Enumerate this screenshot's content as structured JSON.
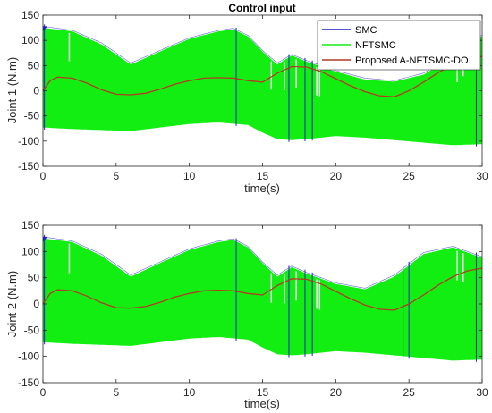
{
  "chart_data": [
    {
      "type": "line",
      "title": "Control input",
      "xlabel": "time(s)",
      "ylabel": "Joint 1 (N.m)",
      "xlim": [
        0,
        30
      ],
      "ylim": [
        -150,
        150
      ],
      "xticks": [
        0,
        5,
        10,
        15,
        20,
        25,
        30
      ],
      "yticks": [
        -150,
        -100,
        -50,
        0,
        50,
        100,
        150
      ],
      "legend": {
        "position": "top-right",
        "entries": [
          "SMC",
          "NFTSMC",
          "Proposed A-NFTSMC-DO"
        ]
      },
      "series": [
        {
          "name": "SMC",
          "color": "#1f22c8",
          "style": "chattering band with occasional spikes",
          "upper_envelope": {
            "x": [
              0,
              2,
              4,
              6,
              8,
              10,
              12,
              13,
              14,
              15,
              16,
              17,
              18,
              20,
              22,
              24,
              26,
              28,
              29,
              30
            ],
            "y": [
              128,
              120,
              95,
              55,
              80,
              105,
              120,
              124,
              110,
              80,
              55,
              72,
              60,
              40,
              25,
              20,
              35,
              70,
              100,
              110
            ]
          },
          "lower_envelope": {
            "x": [
              0,
              2,
              4,
              6,
              8,
              10,
              12,
              14,
              15,
              16,
              17,
              18,
              20,
              22,
              24,
              26,
              28,
              30
            ],
            "y": [
              -75,
              -78,
              -80,
              -82,
              -75,
              -68,
              -65,
              -70,
              -85,
              -98,
              -100,
              -98,
              -92,
              -95,
              -100,
              -105,
              -110,
              -108
            ]
          }
        },
        {
          "name": "NFTSMC",
          "color": "#12ee12",
          "style": "dense chattering band",
          "upper_envelope": {
            "x": [
              0,
              2,
              4,
              6,
              8,
              10,
              12,
              13,
              14,
              15,
              16,
              17,
              18,
              20,
              22,
              24,
              26,
              28,
              29,
              30
            ],
            "y": [
              125,
              118,
              92,
              52,
              78,
              103,
              118,
              122,
              108,
              78,
              52,
              70,
              58,
              38,
              22,
              18,
              32,
              68,
              98,
              108
            ]
          },
          "lower_envelope": {
            "x": [
              0,
              2,
              4,
              6,
              8,
              10,
              12,
              14,
              15,
              16,
              17,
              18,
              20,
              22,
              24,
              26,
              28,
              30
            ],
            "y": [
              -73,
              -76,
              -78,
              -80,
              -73,
              -66,
              -63,
              -68,
              -83,
              -96,
              -98,
              -96,
              -90,
              -93,
              -98,
              -103,
              -108,
              -106
            ]
          }
        },
        {
          "name": "Proposed A-NFTSMC-DO",
          "color": "#b33a22",
          "x": [
            0,
            0.5,
            1,
            2,
            3,
            4,
            5,
            6,
            7,
            8,
            9,
            10,
            11,
            12,
            13,
            14,
            15,
            16,
            17,
            18,
            19,
            20,
            21,
            22,
            23,
            24,
            25,
            26,
            27,
            28,
            29,
            30
          ],
          "y": [
            0,
            20,
            27,
            25,
            15,
            2,
            -7,
            -8,
            -5,
            3,
            13,
            20,
            25,
            26,
            25,
            20,
            17,
            35,
            48,
            47,
            38,
            24,
            10,
            -2,
            -10,
            -12,
            0,
            17,
            36,
            52,
            63,
            68
          ]
        }
      ]
    },
    {
      "type": "line",
      "title": "",
      "xlabel": "time(s)",
      "ylabel": "Joint 2 (N.m)",
      "xlim": [
        0,
        30
      ],
      "ylim": [
        -150,
        150
      ],
      "xticks": [
        0,
        5,
        10,
        15,
        20,
        25,
        30
      ],
      "yticks": [
        -150,
        -100,
        -50,
        0,
        50,
        100,
        150
      ],
      "series": [
        {
          "name": "SMC",
          "color": "#1f22c8",
          "style": "chattering band with occasional spikes",
          "upper_envelope": {
            "x": [
              0,
              2,
              4,
              6,
              8,
              10,
              12,
              13,
              14,
              15,
              16,
              17,
              18,
              20,
              22,
              24,
              26,
              28,
              29,
              30
            ],
            "y": [
              128,
              120,
              95,
              55,
              80,
              105,
              120,
              124,
              110,
              80,
              55,
              72,
              60,
              40,
              30,
              55,
              98,
              110,
              100,
              90
            ]
          },
          "lower_envelope": {
            "x": [
              0,
              2,
              4,
              6,
              8,
              10,
              12,
              14,
              15,
              16,
              17,
              18,
              20,
              22,
              24,
              26,
              28,
              30
            ],
            "y": [
              -75,
              -78,
              -80,
              -82,
              -75,
              -68,
              -65,
              -70,
              -85,
              -98,
              -100,
              -98,
              -92,
              -95,
              -100,
              -105,
              -110,
              -108
            ]
          }
        },
        {
          "name": "NFTSMC",
          "color": "#12ee12",
          "style": "dense chattering band",
          "upper_envelope": {
            "x": [
              0,
              2,
              4,
              6,
              8,
              10,
              12,
              13,
              14,
              15,
              16,
              17,
              18,
              20,
              22,
              24,
              26,
              28,
              29,
              30
            ],
            "y": [
              125,
              118,
              92,
              52,
              78,
              103,
              118,
              122,
              108,
              78,
              52,
              70,
              58,
              38,
              28,
              52,
              95,
              108,
              98,
              88
            ]
          },
          "lower_envelope": {
            "x": [
              0,
              2,
              4,
              6,
              8,
              10,
              12,
              14,
              15,
              16,
              17,
              18,
              20,
              22,
              24,
              26,
              28,
              30
            ],
            "y": [
              -73,
              -76,
              -78,
              -80,
              -73,
              -66,
              -63,
              -68,
              -83,
              -96,
              -98,
              -96,
              -90,
              -93,
              -98,
              -103,
              -108,
              -106
            ]
          }
        },
        {
          "name": "Proposed A-NFTSMC-DO",
          "color": "#b33a22",
          "x": [
            0,
            0.5,
            1,
            2,
            3,
            4,
            5,
            6,
            7,
            8,
            9,
            10,
            11,
            12,
            13,
            14,
            15,
            16,
            17,
            18,
            19,
            20,
            21,
            22,
            23,
            24,
            25,
            26,
            27,
            28,
            29,
            30
          ],
          "y": [
            0,
            20,
            27,
            25,
            15,
            2,
            -7,
            -8,
            -5,
            3,
            13,
            20,
            25,
            26,
            25,
            20,
            17,
            35,
            48,
            47,
            38,
            24,
            10,
            -2,
            -10,
            -12,
            0,
            17,
            36,
            52,
            63,
            68
          ]
        }
      ]
    }
  ]
}
